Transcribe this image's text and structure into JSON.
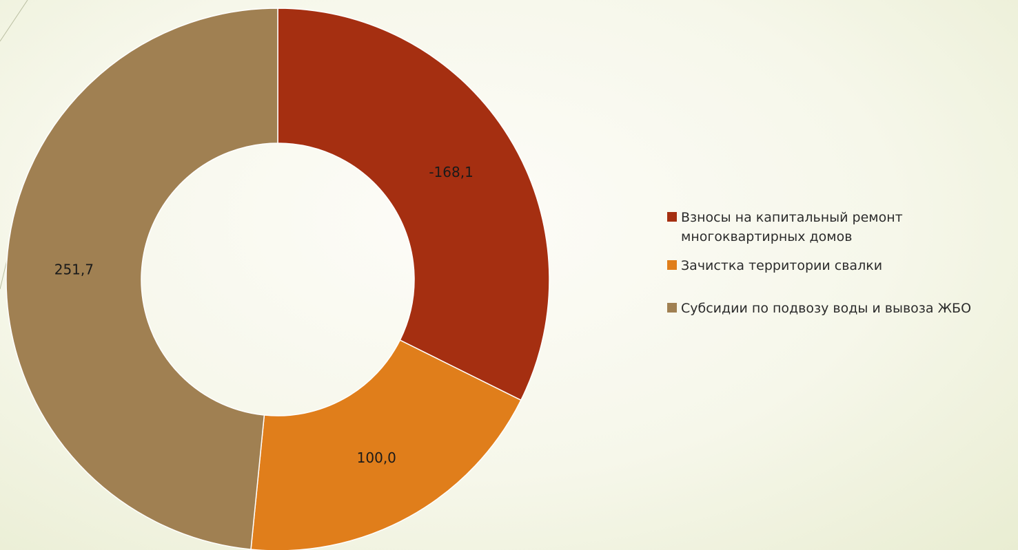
{
  "chart_data": {
    "type": "pie",
    "variant": "doughnut",
    "title": "",
    "categories": [
      "Взносы на капитальный ремонт многоквартирных домов",
      "Зачистка территории свалки",
      "Субсидии по подвозу воды и вывоза ЖБО"
    ],
    "values": [
      -168.1,
      100.0,
      251.7
    ],
    "data_labels": [
      "-168,1",
      "100,0",
      "251,7"
    ],
    "colors": [
      "#a52f11",
      "#e07e1b",
      "#a08052"
    ],
    "legend_position": "right"
  }
}
